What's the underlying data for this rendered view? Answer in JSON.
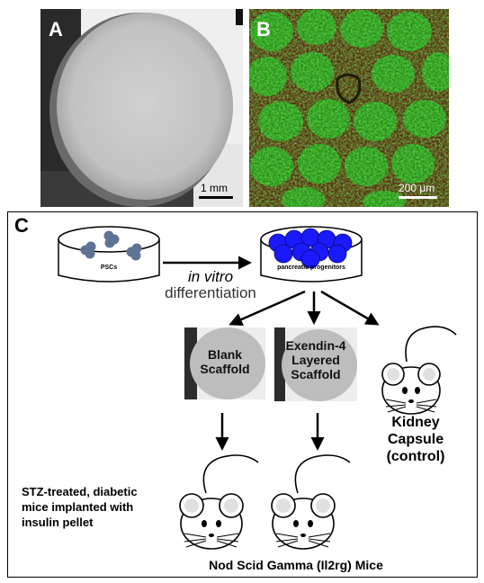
{
  "panels": {
    "a": {
      "letter": "A",
      "scale_bar": "1 mm"
    },
    "b": {
      "letter": "B",
      "scale_bar": "200 μm"
    },
    "c": {
      "letter": "C",
      "dish_left_label": "PSCs",
      "dish_right_label": "pancreatic progenitors",
      "process_italic": "in vitro",
      "process_text": "differentiation",
      "scaffold_blank": [
        "Blank",
        "Scaffold"
      ],
      "scaffold_exendin": [
        "Exendin-4",
        "Layered",
        "Scaffold"
      ],
      "control": [
        "Kidney",
        "Capsule",
        "(control)"
      ],
      "treatment": [
        "STZ-treated, diabetic",
        "mice implanted with",
        "insulin pellet"
      ],
      "mice_strain": "Nod Scid Gamma (Il2rg) Mice"
    }
  },
  "colors": {
    "cell_gray_blue": "#5f7494",
    "progenitor_blue": "#1a1aff",
    "fluor_green": "#22c41a",
    "fluor_red": "#7a2a12"
  }
}
